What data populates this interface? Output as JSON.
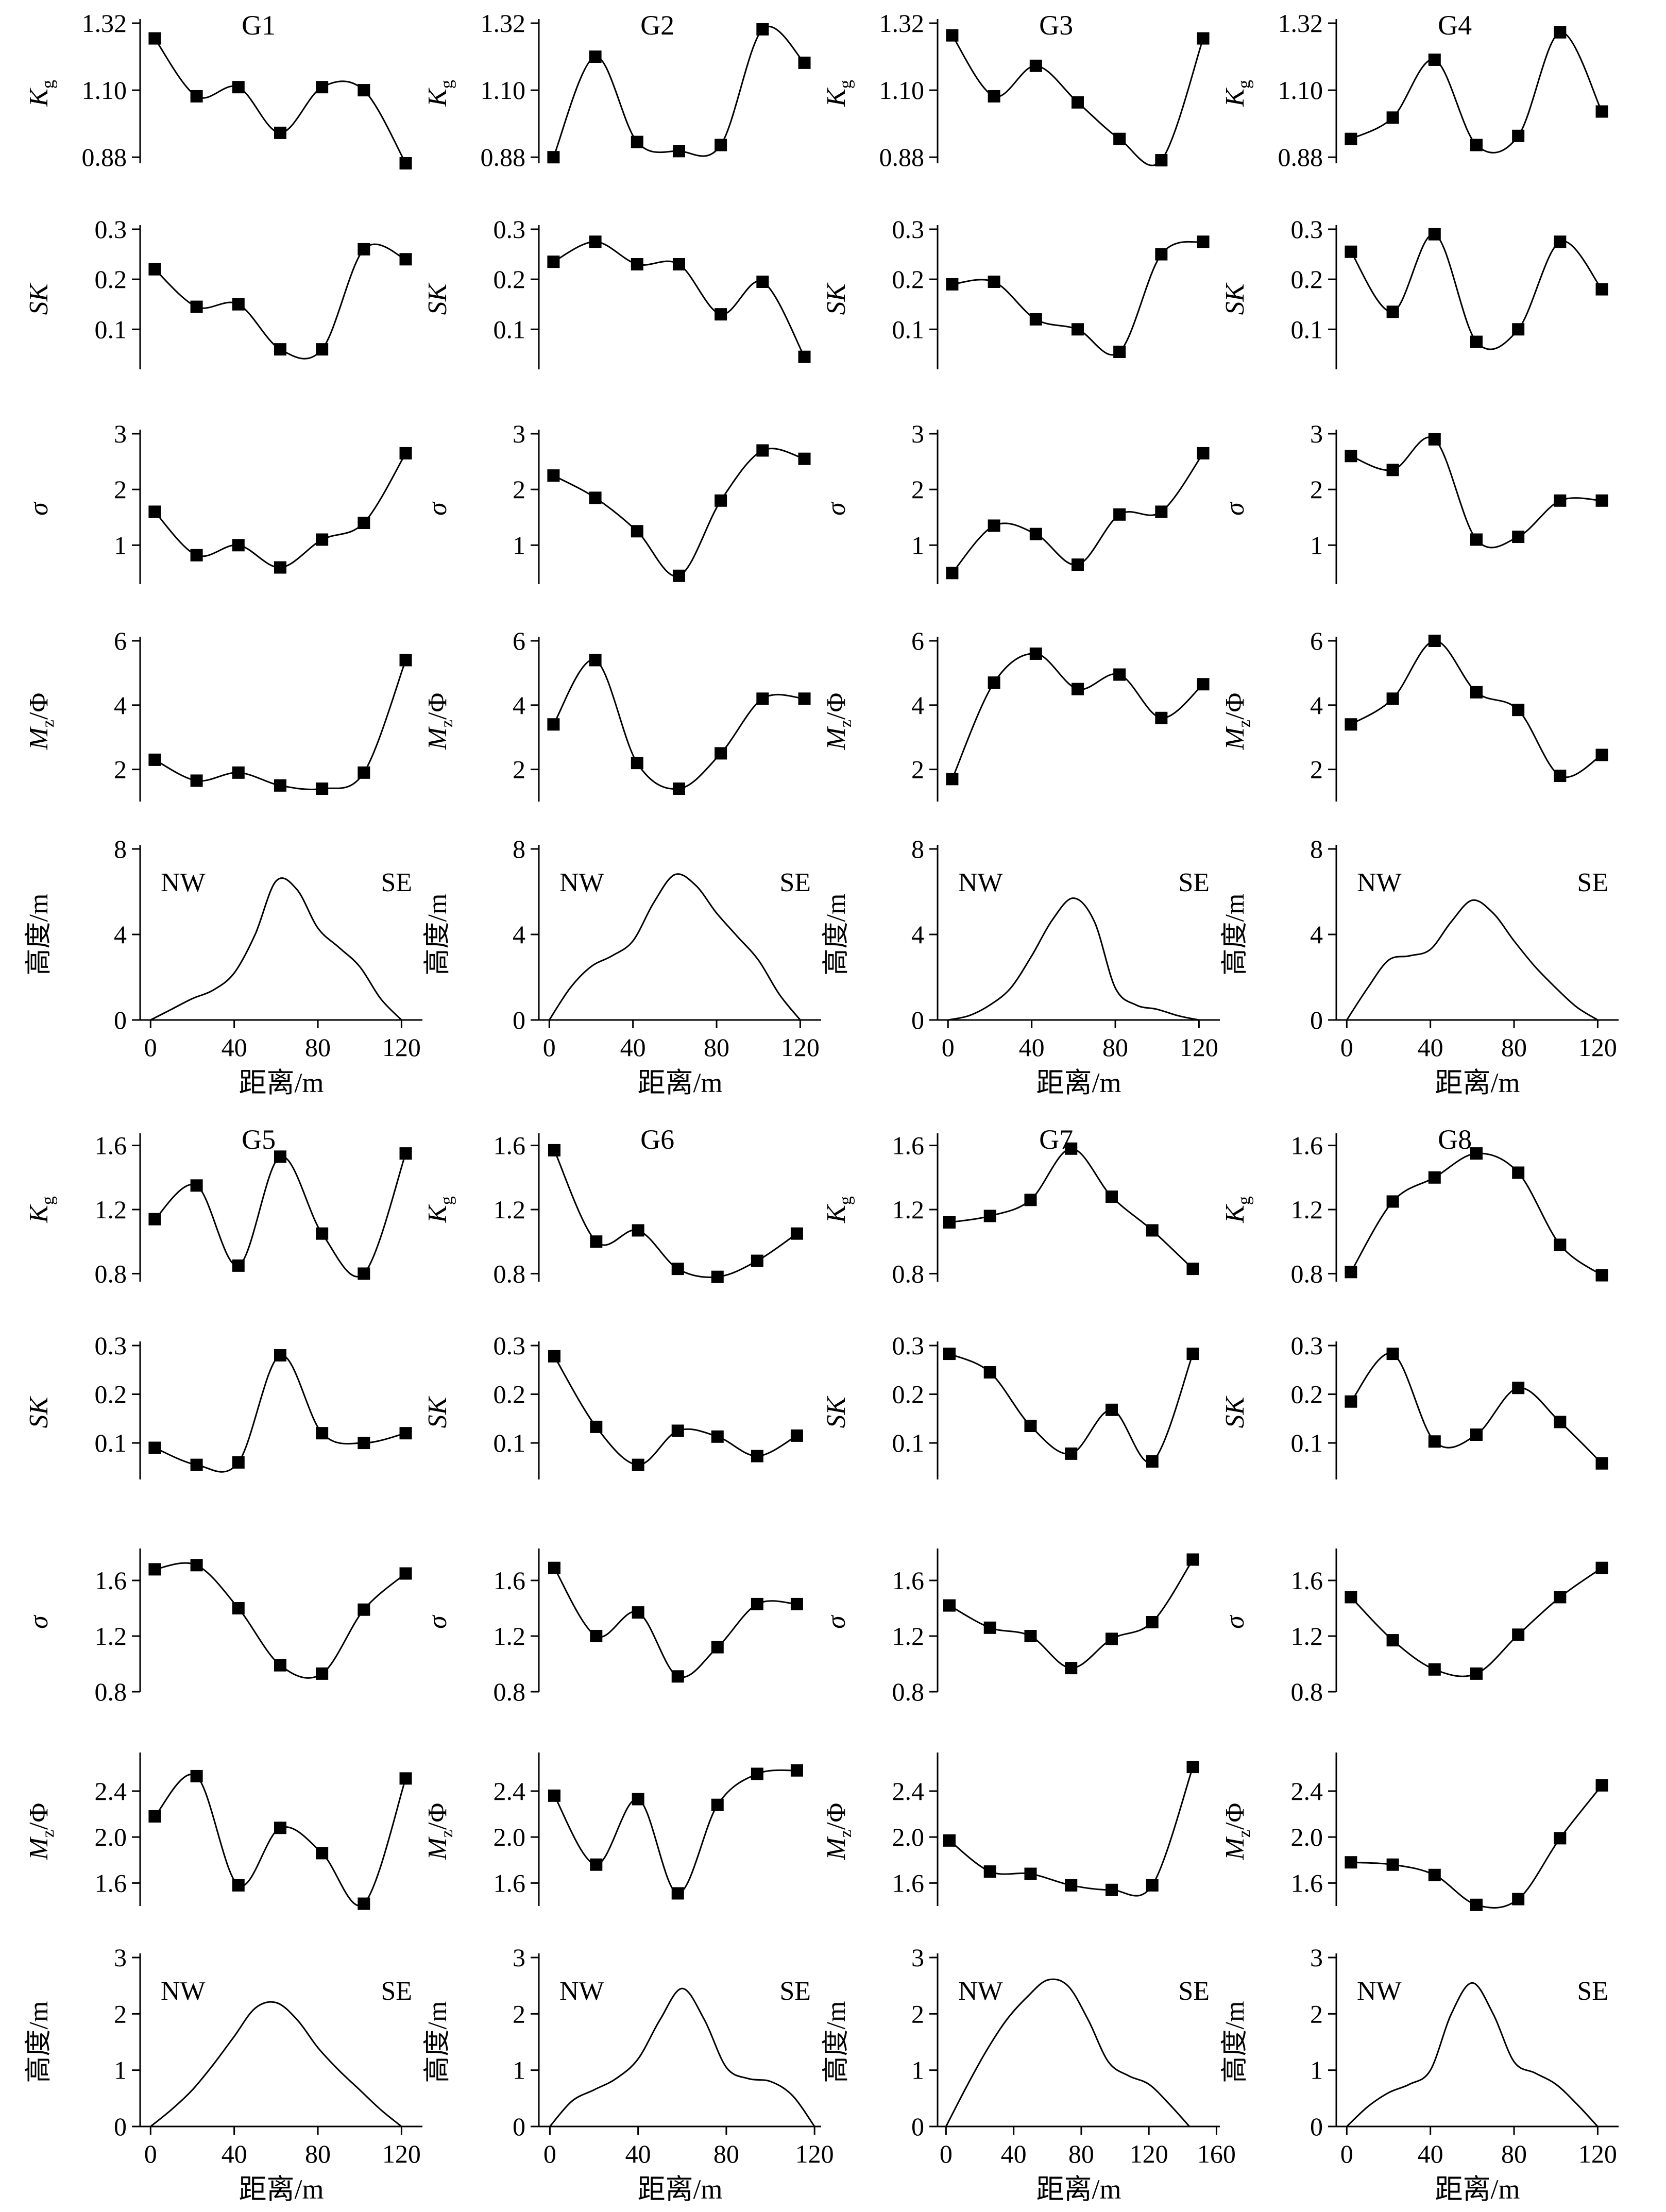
{
  "figure": {
    "xlabel": "距离/m",
    "row_labels": {
      "Kg": "K",
      "Kg_sub": "g",
      "SK": "SK",
      "sigma": "σ",
      "Mz": "M",
      "Mz_sub": "z",
      "Mz_unit": "/Φ",
      "height": "高度/m"
    },
    "direction_labels": {
      "left": "NW",
      "right": "SE"
    }
  },
  "chart_data": [
    {
      "panel_id": "G1",
      "title": "G1",
      "type": "line",
      "xlim": [
        -5,
        130
      ],
      "xticks": [
        0,
        40,
        80,
        120
      ],
      "Kg": {
        "ylim": [
          0.86,
          1.32
        ],
        "yticks": [
          0.88,
          1.1,
          1.32
        ],
        "x": [
          2,
          22,
          42,
          62,
          82,
          102,
          122
        ],
        "y": [
          1.27,
          1.08,
          1.11,
          0.96,
          1.11,
          1.1,
          0.86
        ]
      },
      "SK": {
        "ylim": [
          0.02,
          0.3
        ],
        "yticks": [
          0.1,
          0.2,
          0.3
        ],
        "x": [
          2,
          22,
          42,
          62,
          82,
          102,
          122
        ],
        "y": [
          0.22,
          0.145,
          0.15,
          0.06,
          0.06,
          0.26,
          0.24
        ]
      },
      "sigma": {
        "ylim": [
          0.3,
          3.0
        ],
        "yticks": [
          1,
          2,
          3
        ],
        "x": [
          2,
          22,
          42,
          62,
          82,
          102,
          122
        ],
        "y": [
          1.6,
          0.82,
          1.0,
          0.6,
          1.1,
          1.4,
          2.65
        ]
      },
      "Mz": {
        "ylim": [
          1.0,
          6.0
        ],
        "yticks": [
          2,
          4,
          6
        ],
        "x": [
          2,
          22,
          42,
          62,
          82,
          102,
          122
        ],
        "y": [
          2.3,
          1.65,
          1.9,
          1.5,
          1.4,
          1.9,
          5.4
        ]
      },
      "height": {
        "ylim": [
          0,
          8
        ],
        "yticks": [
          0,
          4,
          8
        ],
        "x": [
          0,
          10,
          20,
          30,
          40,
          50,
          60,
          70,
          80,
          90,
          100,
          110,
          120
        ],
        "y": [
          0,
          0.5,
          1.0,
          1.4,
          2.2,
          4.0,
          6.5,
          6.1,
          4.3,
          3.4,
          2.5,
          1.0,
          0
        ]
      }
    },
    {
      "panel_id": "G2",
      "title": "G2",
      "type": "line",
      "xlim": [
        -5,
        130
      ],
      "xticks": [
        0,
        40,
        80,
        120
      ],
      "Kg": {
        "ylim": [
          0.86,
          1.32
        ],
        "yticks": [
          0.88,
          1.1,
          1.32
        ],
        "x": [
          2,
          22,
          42,
          62,
          82,
          102,
          122
        ],
        "y": [
          0.88,
          1.21,
          0.93,
          0.9,
          0.92,
          1.3,
          1.19
        ]
      },
      "SK": {
        "ylim": [
          0.02,
          0.3
        ],
        "yticks": [
          0.1,
          0.2,
          0.3
        ],
        "x": [
          2,
          22,
          42,
          62,
          82,
          102,
          122
        ],
        "y": [
          0.235,
          0.275,
          0.23,
          0.23,
          0.13,
          0.195,
          0.045
        ]
      },
      "sigma": {
        "ylim": [
          0.3,
          3.0
        ],
        "yticks": [
          1,
          2,
          3
        ],
        "x": [
          2,
          22,
          42,
          62,
          82,
          102,
          122
        ],
        "y": [
          2.25,
          1.85,
          1.25,
          0.45,
          1.8,
          2.7,
          2.55
        ]
      },
      "Mz": {
        "ylim": [
          1.0,
          6.0
        ],
        "yticks": [
          2,
          4,
          6
        ],
        "x": [
          2,
          22,
          42,
          62,
          82,
          102,
          122
        ],
        "y": [
          3.4,
          5.4,
          2.2,
          1.4,
          2.5,
          4.2,
          4.2
        ]
      },
      "height": {
        "ylim": [
          0,
          8
        ],
        "yticks": [
          0,
          4,
          8
        ],
        "x": [
          0,
          10,
          20,
          30,
          40,
          50,
          60,
          70,
          80,
          90,
          100,
          110,
          120
        ],
        "y": [
          0,
          1.5,
          2.5,
          3.0,
          3.7,
          5.5,
          6.8,
          6.3,
          5.0,
          3.9,
          2.8,
          1.2,
          0
        ]
      }
    },
    {
      "panel_id": "G3",
      "title": "G3",
      "type": "line",
      "xlim": [
        -5,
        130
      ],
      "xticks": [
        0,
        40,
        80,
        120
      ],
      "Kg": {
        "ylim": [
          0.86,
          1.32
        ],
        "yticks": [
          0.88,
          1.1,
          1.32
        ],
        "x": [
          2,
          22,
          42,
          62,
          82,
          102,
          122
        ],
        "y": [
          1.28,
          1.08,
          1.18,
          1.06,
          0.94,
          0.87,
          1.27
        ]
      },
      "SK": {
        "ylim": [
          0.02,
          0.3
        ],
        "yticks": [
          0.1,
          0.2,
          0.3
        ],
        "x": [
          2,
          22,
          42,
          62,
          82,
          102,
          122
        ],
        "y": [
          0.19,
          0.195,
          0.12,
          0.1,
          0.055,
          0.25,
          0.275
        ]
      },
      "sigma": {
        "ylim": [
          0.3,
          3.0
        ],
        "yticks": [
          1,
          2,
          3
        ],
        "x": [
          2,
          22,
          42,
          62,
          82,
          102,
          122
        ],
        "y": [
          0.5,
          1.35,
          1.2,
          0.65,
          1.55,
          1.6,
          2.65
        ]
      },
      "Mz": {
        "ylim": [
          1.0,
          6.0
        ],
        "yticks": [
          2,
          4,
          6
        ],
        "x": [
          2,
          22,
          42,
          62,
          82,
          102,
          122
        ],
        "y": [
          1.7,
          4.7,
          5.6,
          4.5,
          4.95,
          3.6,
          4.65
        ]
      },
      "height": {
        "ylim": [
          0,
          8
        ],
        "yticks": [
          0,
          4,
          8
        ],
        "x": [
          0,
          10,
          20,
          30,
          40,
          50,
          60,
          70,
          80,
          90,
          100,
          110,
          120
        ],
        "y": [
          0,
          0.2,
          0.7,
          1.5,
          3.0,
          4.7,
          5.7,
          4.6,
          1.5,
          0.7,
          0.5,
          0.2,
          0
        ]
      }
    },
    {
      "panel_id": "G4",
      "title": "G4",
      "type": "line",
      "xlim": [
        -5,
        130
      ],
      "xticks": [
        0,
        40,
        80,
        120
      ],
      "Kg": {
        "ylim": [
          0.86,
          1.32
        ],
        "yticks": [
          0.88,
          1.1,
          1.32
        ],
        "x": [
          2,
          22,
          42,
          62,
          82,
          102,
          122
        ],
        "y": [
          0.94,
          1.01,
          1.2,
          0.92,
          0.95,
          1.29,
          1.03
        ]
      },
      "SK": {
        "ylim": [
          0.02,
          0.3
        ],
        "yticks": [
          0.1,
          0.2,
          0.3
        ],
        "x": [
          2,
          22,
          42,
          62,
          82,
          102,
          122
        ],
        "y": [
          0.255,
          0.135,
          0.29,
          0.075,
          0.1,
          0.275,
          0.18
        ]
      },
      "sigma": {
        "ylim": [
          0.3,
          3.0
        ],
        "yticks": [
          1,
          2,
          3
        ],
        "x": [
          2,
          22,
          42,
          62,
          82,
          102,
          122
        ],
        "y": [
          2.6,
          2.35,
          2.9,
          1.1,
          1.15,
          1.8,
          1.8
        ]
      },
      "Mz": {
        "ylim": [
          1.0,
          6.0
        ],
        "yticks": [
          2,
          4,
          6
        ],
        "x": [
          2,
          22,
          42,
          62,
          82,
          102,
          122
        ],
        "y": [
          3.4,
          4.2,
          6.0,
          4.4,
          3.85,
          1.8,
          2.45
        ]
      },
      "height": {
        "ylim": [
          0,
          8
        ],
        "yticks": [
          0,
          4,
          8
        ],
        "x": [
          0,
          10,
          20,
          30,
          40,
          50,
          60,
          70,
          80,
          90,
          100,
          110,
          120
        ],
        "y": [
          0,
          1.5,
          2.8,
          3.0,
          3.3,
          4.6,
          5.6,
          5.0,
          3.7,
          2.5,
          1.5,
          0.6,
          0
        ]
      }
    },
    {
      "panel_id": "G5",
      "title": "G5",
      "type": "line",
      "xlim": [
        -5,
        130
      ],
      "xticks": [
        0,
        40,
        80,
        120
      ],
      "Kg": {
        "ylim": [
          0.75,
          1.65
        ],
        "yticks": [
          0.8,
          1.2,
          1.6
        ],
        "x": [
          2,
          22,
          42,
          62,
          82,
          102,
          122
        ],
        "y": [
          1.14,
          1.35,
          0.85,
          1.53,
          1.05,
          0.8,
          1.55
        ]
      },
      "SK": {
        "ylim": [
          0.025,
          0.3
        ],
        "yticks": [
          0.1,
          0.2,
          0.3
        ],
        "x": [
          2,
          22,
          42,
          62,
          82,
          102,
          122
        ],
        "y": [
          0.09,
          0.055,
          0.06,
          0.28,
          0.12,
          0.1,
          0.12
        ]
      },
      "sigma": {
        "ylim": [
          0.8,
          1.8
        ],
        "yticks": [
          0.8,
          1.2,
          1.6
        ],
        "x": [
          2,
          22,
          42,
          62,
          82,
          102,
          122
        ],
        "y": [
          1.68,
          1.71,
          1.4,
          0.99,
          0.93,
          1.39,
          1.65
        ]
      },
      "Mz": {
        "ylim": [
          1.4,
          2.7
        ],
        "yticks": [
          1.6,
          2.0,
          2.4
        ],
        "x": [
          2,
          22,
          42,
          62,
          82,
          102,
          122
        ],
        "y": [
          2.18,
          2.53,
          1.58,
          2.08,
          1.86,
          1.42,
          2.51
        ]
      },
      "height": {
        "ylim": [
          0,
          3
        ],
        "yticks": [
          0,
          1,
          2,
          3
        ],
        "x": [
          0,
          10,
          20,
          30,
          40,
          50,
          60,
          70,
          80,
          90,
          100,
          110,
          120
        ],
        "y": [
          0,
          0.3,
          0.65,
          1.1,
          1.6,
          2.1,
          2.2,
          1.9,
          1.4,
          1.0,
          0.65,
          0.3,
          0
        ]
      }
    },
    {
      "panel_id": "G6",
      "title": "G6",
      "type": "line",
      "xlim": [
        -5,
        123
      ],
      "xticks": [
        0,
        40,
        80,
        120
      ],
      "Kg": {
        "ylim": [
          0.75,
          1.65
        ],
        "yticks": [
          0.8,
          1.2,
          1.6
        ],
        "x": [
          2,
          21,
          40,
          58,
          76,
          94,
          112
        ],
        "y": [
          1.57,
          1.0,
          1.07,
          0.83,
          0.78,
          0.88,
          1.05
        ]
      },
      "SK": {
        "ylim": [
          0.025,
          0.3
        ],
        "yticks": [
          0.1,
          0.2,
          0.3
        ],
        "x": [
          2,
          21,
          40,
          58,
          76,
          94,
          112
        ],
        "y": [
          0.278,
          0.133,
          0.055,
          0.125,
          0.113,
          0.073,
          0.115
        ]
      },
      "sigma": {
        "ylim": [
          0.8,
          1.8
        ],
        "yticks": [
          0.8,
          1.2,
          1.6
        ],
        "x": [
          2,
          21,
          40,
          58,
          76,
          94,
          112
        ],
        "y": [
          1.69,
          1.2,
          1.37,
          0.91,
          1.12,
          1.43,
          1.43
        ]
      },
      "Mz": {
        "ylim": [
          1.4,
          2.7
        ],
        "yticks": [
          1.6,
          2.0,
          2.4
        ],
        "x": [
          2,
          21,
          40,
          58,
          76,
          94,
          112
        ],
        "y": [
          2.36,
          1.76,
          2.33,
          1.51,
          2.28,
          2.55,
          2.58
        ]
      },
      "height": {
        "ylim": [
          0,
          3
        ],
        "yticks": [
          0,
          1,
          2,
          3
        ],
        "x": [
          0,
          10,
          20,
          30,
          40,
          50,
          60,
          70,
          80,
          90,
          100,
          110,
          120
        ],
        "y": [
          0,
          0.45,
          0.65,
          0.85,
          1.2,
          1.9,
          2.45,
          1.9,
          1.05,
          0.85,
          0.8,
          0.55,
          0
        ]
      }
    },
    {
      "panel_id": "G7",
      "title": "G7",
      "type": "line",
      "xlim": [
        -5,
        162
      ],
      "xticks": [
        0,
        40,
        80,
        120,
        160
      ],
      "Kg": {
        "ylim": [
          0.75,
          1.65
        ],
        "yticks": [
          0.8,
          1.2,
          1.6
        ],
        "x": [
          2,
          26,
          50,
          74,
          98,
          122,
          146
        ],
        "y": [
          1.12,
          1.16,
          1.26,
          1.58,
          1.28,
          1.07,
          0.83
        ]
      },
      "SK": {
        "ylim": [
          0.025,
          0.3
        ],
        "yticks": [
          0.1,
          0.2,
          0.3
        ],
        "x": [
          2,
          26,
          50,
          74,
          98,
          122,
          146
        ],
        "y": [
          0.283,
          0.245,
          0.135,
          0.078,
          0.168,
          0.062,
          0.283
        ]
      },
      "sigma": {
        "ylim": [
          0.8,
          1.8
        ],
        "yticks": [
          0.8,
          1.2,
          1.6
        ],
        "x": [
          2,
          26,
          50,
          74,
          98,
          122,
          146
        ],
        "y": [
          1.42,
          1.26,
          1.2,
          0.97,
          1.18,
          1.3,
          1.75
        ]
      },
      "Mz": {
        "ylim": [
          1.4,
          2.7
        ],
        "yticks": [
          1.6,
          2.0,
          2.4
        ],
        "x": [
          2,
          26,
          50,
          74,
          98,
          122,
          146
        ],
        "y": [
          1.97,
          1.7,
          1.68,
          1.58,
          1.54,
          1.58,
          2.61
        ]
      },
      "height": {
        "ylim": [
          0,
          3
        ],
        "yticks": [
          0,
          1,
          2,
          3
        ],
        "x": [
          0,
          12,
          24,
          36,
          48,
          60,
          72,
          84,
          96,
          108,
          120,
          132,
          144
        ],
        "y": [
          0,
          0.7,
          1.35,
          1.9,
          2.3,
          2.6,
          2.5,
          1.9,
          1.15,
          0.9,
          0.75,
          0.4,
          0
        ]
      }
    },
    {
      "panel_id": "G8",
      "title": "G8",
      "type": "line",
      "xlim": [
        -5,
        130
      ],
      "xticks": [
        0,
        40,
        80,
        120
      ],
      "Kg": {
        "ylim": [
          0.75,
          1.65
        ],
        "yticks": [
          0.8,
          1.2,
          1.6
        ],
        "x": [
          2,
          22,
          42,
          62,
          82,
          102,
          122
        ],
        "y": [
          0.81,
          1.25,
          1.4,
          1.55,
          1.43,
          0.98,
          0.79
        ]
      },
      "SK": {
        "ylim": [
          0.025,
          0.3
        ],
        "yticks": [
          0.1,
          0.2,
          0.3
        ],
        "x": [
          2,
          22,
          42,
          62,
          82,
          102,
          122
        ],
        "y": [
          0.185,
          0.283,
          0.103,
          0.117,
          0.213,
          0.143,
          0.058
        ]
      },
      "sigma": {
        "ylim": [
          0.8,
          1.8
        ],
        "yticks": [
          0.8,
          1.2,
          1.6
        ],
        "x": [
          2,
          22,
          42,
          62,
          82,
          102,
          122
        ],
        "y": [
          1.48,
          1.17,
          0.96,
          0.93,
          1.21,
          1.48,
          1.69
        ]
      },
      "Mz": {
        "ylim": [
          1.4,
          2.7
        ],
        "yticks": [
          1.6,
          2.0,
          2.4
        ],
        "x": [
          2,
          22,
          42,
          62,
          82,
          102,
          122
        ],
        "y": [
          1.78,
          1.76,
          1.67,
          1.41,
          1.46,
          1.99,
          2.45
        ]
      },
      "height": {
        "ylim": [
          0,
          3
        ],
        "yticks": [
          0,
          1,
          2,
          3
        ],
        "x": [
          0,
          10,
          20,
          30,
          40,
          50,
          60,
          70,
          80,
          90,
          100,
          110,
          120
        ],
        "y": [
          0,
          0.35,
          0.6,
          0.75,
          1.0,
          2.0,
          2.55,
          2.0,
          1.15,
          0.95,
          0.75,
          0.4,
          0
        ]
      }
    }
  ]
}
